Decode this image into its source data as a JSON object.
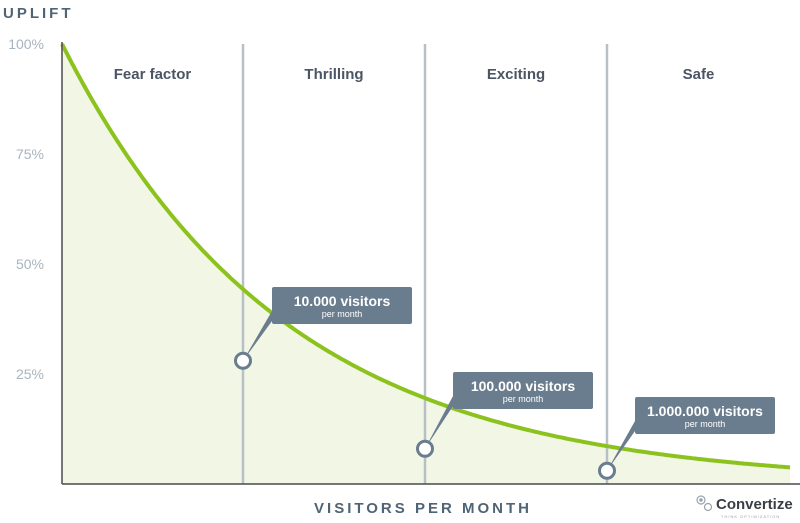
{
  "chart_data": {
    "type": "area",
    "ylabel": "UPLIFT",
    "xlabel": "VISITORS PER MONTH",
    "y_ticks": [
      "100%",
      "75%",
      "50%",
      "25%"
    ],
    "y_tick_values": [
      100,
      75,
      50,
      25
    ],
    "ylim": [
      0,
      100
    ],
    "x_scale": "unlabeled",
    "zones": [
      "Fear factor",
      "Thrilling",
      "Exciting",
      "Safe"
    ],
    "curve": {
      "shape": "exponential-decay",
      "start_value": 100,
      "approx_end_value": 1
    },
    "markers": [
      {
        "label": "10.000 visitors",
        "sublabel": "per month",
        "y": 28
      },
      {
        "label": "100.000 visitors",
        "sublabel": "per month",
        "y": 8
      },
      {
        "label": "1.000.000 visitors",
        "sublabel": "per month",
        "y": 3
      }
    ],
    "colors": {
      "curve": "#8cc21e",
      "fill": "#f2f7e5",
      "callout": "#6a7d8e",
      "divider": "#b7c0c7",
      "axis": "#4a4a4a"
    },
    "grid": false,
    "legend": "none"
  },
  "branding": {
    "logo_name": "Convertize",
    "logo_tagline": "THINK OPTIMIZATION"
  }
}
